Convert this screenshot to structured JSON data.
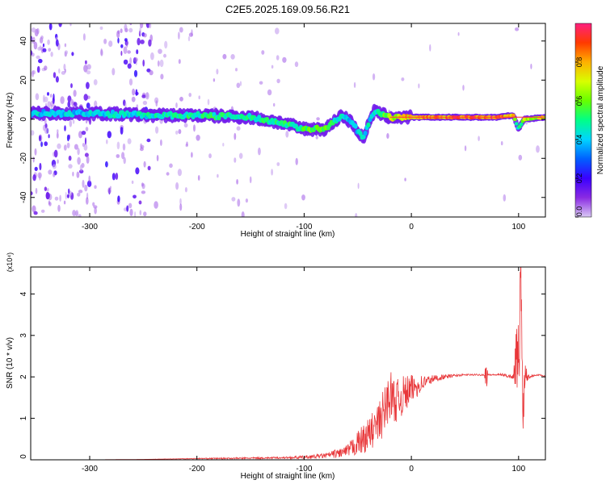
{
  "title": "C2E5.2025.169.09.56.R21",
  "colors": {
    "snr_line": "#e8373a",
    "trace_core": "#ff3b3b",
    "colormap": [
      "#d9c8f4",
      "#8a2be2",
      "#3a00ff",
      "#0060ff",
      "#00d4ff",
      "#00ff88",
      "#66ff00",
      "#d8ff00",
      "#ffb000",
      "#ff3a00",
      "#ff2080"
    ]
  },
  "chart_data": [
    {
      "type": "heatmap",
      "title": "C2E5.2025.169.09.56.R21",
      "xlabel": "Height of straight line (km)",
      "ylabel": "Frequency (Hz)",
      "xlim": [
        -355,
        125
      ],
      "ylim": [
        -50,
        49
      ],
      "xticks": [
        -300,
        -200,
        -100,
        0,
        100
      ],
      "xtick_labels": [
        "-300",
        "-200",
        "-100",
        "0",
        "100"
      ],
      "yticks": [
        -40,
        -20,
        0,
        20,
        40
      ],
      "ytick_labels": [
        "-40",
        "-20",
        "0",
        "20",
        "40"
      ],
      "colorbar": {
        "label": "Normalized spectral amplitude",
        "range": [
          0,
          1
        ],
        "ticks": [
          0.0,
          0.2,
          0.4,
          0.6,
          0.8
        ],
        "tick_labels": [
          "0.0",
          "0.2",
          "0.4",
          "0.6",
          "0.8"
        ]
      },
      "ridge": {
        "x": [
          -355,
          -300,
          -240,
          -200,
          -150,
          -120,
          -100,
          -80,
          -65,
          -55,
          -45,
          -35,
          -20,
          0,
          40,
          80,
          95,
          100,
          105,
          125
        ],
        "y": [
          3,
          3,
          2,
          2,
          1,
          -2,
          -5,
          -5,
          2,
          -2,
          -10,
          4,
          1,
          1,
          1,
          1,
          2,
          -5,
          0,
          1
        ],
        "amplitude": [
          0.45,
          0.45,
          0.5,
          0.55,
          0.55,
          0.55,
          0.6,
          0.6,
          0.5,
          0.45,
          0.45,
          0.5,
          0.7,
          0.85,
          0.95,
          0.95,
          0.8,
          0.5,
          0.7,
          0.8
        ]
      },
      "grid": false
    },
    {
      "type": "line",
      "xlabel": "Height of straight line (km)",
      "ylabel": "SNR (10 * v/v)",
      "y_scale_label": "(x10⁴)",
      "xlim": [
        -355,
        125
      ],
      "ylim": [
        0,
        4.65
      ],
      "xticks": [
        -300,
        -200,
        -100,
        0,
        100
      ],
      "xtick_labels": [
        "-300",
        "-200",
        "-100",
        "0",
        "100"
      ],
      "yticks": [
        0,
        1,
        2,
        3,
        4
      ],
      "ytick_labels": [
        "0",
        "1",
        "2",
        "3",
        "4"
      ],
      "series": [
        {
          "x": [
            -355,
            -300,
            -250,
            -200,
            -150,
            -120,
            -100,
            -80,
            -60,
            -50,
            -40,
            -30,
            -25,
            -20,
            -15,
            -10,
            -5,
            0,
            10,
            20,
            30,
            40,
            50,
            60,
            68,
            70,
            72,
            75,
            85,
            95,
            98,
            100,
            102,
            104,
            106,
            110,
            115,
            120,
            125
          ],
          "y": [
            0.0,
            0.0,
            0.01,
            0.03,
            0.04,
            0.05,
            0.06,
            0.1,
            0.2,
            0.4,
            0.6,
            0.9,
            1.2,
            1.6,
            1.4,
            1.5,
            1.6,
            1.7,
            1.85,
            1.95,
            2.0,
            2.03,
            2.05,
            2.05,
            2.05,
            2.1,
            2.05,
            2.05,
            2.05,
            2.0,
            2.5,
            2.2,
            4.6,
            1.2,
            2.1,
            2.0,
            2.05,
            2.05,
            2.0
          ],
          "noise": [
            0.0,
            0.0,
            0.0,
            0.01,
            0.02,
            0.02,
            0.04,
            0.06,
            0.15,
            0.3,
            0.4,
            0.5,
            0.6,
            0.6,
            0.5,
            0.5,
            0.45,
            0.35,
            0.2,
            0.1,
            0.06,
            0.03,
            0.02,
            0.02,
            0.02,
            0.4,
            0.02,
            0.02,
            0.03,
            0.05,
            0.8,
            1.2,
            1.0,
            0.8,
            0.3,
            0.05,
            0.03,
            0.02,
            0.02
          ]
        }
      ],
      "grid": false
    }
  ]
}
